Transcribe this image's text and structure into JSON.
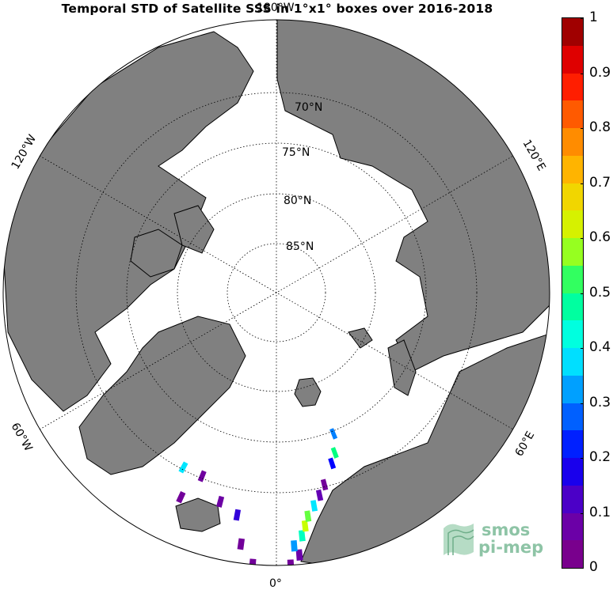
{
  "title": "Temporal STD of Satellite SSS in 1°x1° boxes over 2016-2018",
  "map": {
    "projection": "north-polar-stereographic",
    "latitude_labels": [
      "70°N",
      "75°N",
      "80°N",
      "85°N"
    ],
    "longitude_labels": {
      "top": "180°W",
      "bottom": "0°",
      "upper_left": "120°W",
      "upper_right": "120°E",
      "lower_left": "60°W",
      "lower_right": "60°E"
    },
    "colors": {
      "land": "#808080",
      "ocean": "#ffffff",
      "coastline": "#000000",
      "graticule": "#000000"
    }
  },
  "colorbar": {
    "min": 0,
    "max": 1,
    "tick_labels": [
      "0",
      "0.1",
      "0.2",
      "0.3",
      "0.4",
      "0.5",
      "0.6",
      "0.7",
      "0.8",
      "0.9",
      "1"
    ],
    "colormap": "jet",
    "segments": 20
  },
  "data_cells": [
    {
      "lon": 3,
      "lat": 60,
      "value": 0.05
    },
    {
      "lon": 5,
      "lat": 61,
      "value": 0.08
    },
    {
      "lon": 4,
      "lat": 62,
      "value": 0.32
    },
    {
      "lon": 6,
      "lat": 63,
      "value": 0.45
    },
    {
      "lon": 7,
      "lat": 64,
      "value": 0.6
    },
    {
      "lon": 8,
      "lat": 65,
      "value": 0.55
    },
    {
      "lon": 10,
      "lat": 66,
      "value": 0.38
    },
    {
      "lon": 12,
      "lat": 67,
      "value": 0.1
    },
    {
      "lon": 14,
      "lat": 68,
      "value": 0.05
    },
    {
      "lon": 18,
      "lat": 70,
      "value": 0.2
    },
    {
      "lon": 20,
      "lat": 71,
      "value": 0.5
    },
    {
      "lon": 22,
      "lat": 73,
      "value": 0.3
    },
    {
      "lon": -5,
      "lat": 60,
      "value": 0.05
    },
    {
      "lon": -8,
      "lat": 62,
      "value": 0.05
    },
    {
      "lon": -10,
      "lat": 65,
      "value": 0.15
    },
    {
      "lon": -15,
      "lat": 66,
      "value": 0.07
    },
    {
      "lon": -25,
      "lat": 65,
      "value": 0.05
    },
    {
      "lon": -22,
      "lat": 68,
      "value": 0.06
    },
    {
      "lon": -28,
      "lat": 68,
      "value": 0.38
    }
  ],
  "logo": {
    "line1": "smos",
    "line2": "pi-mep"
  }
}
